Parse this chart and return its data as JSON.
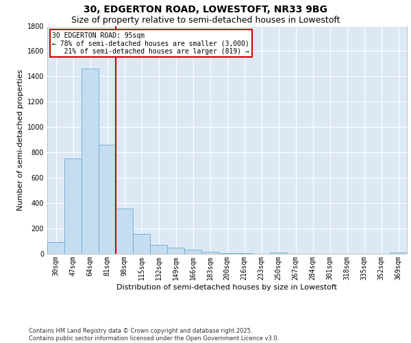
{
  "title_line1": "30, EDGERTON ROAD, LOWESTOFT, NR33 9BG",
  "title_line2": "Size of property relative to semi-detached houses in Lowestoft",
  "xlabel": "Distribution of semi-detached houses by size in Lowestoft",
  "ylabel": "Number of semi-detached properties",
  "footer": "Contains HM Land Registry data © Crown copyright and database right 2025.\nContains public sector information licensed under the Open Government Licence v3.0.",
  "categories": [
    "30sqm",
    "47sqm",
    "64sqm",
    "81sqm",
    "98sqm",
    "115sqm",
    "132sqm",
    "149sqm",
    "166sqm",
    "183sqm",
    "200sqm",
    "216sqm",
    "233sqm",
    "250sqm",
    "267sqm",
    "284sqm",
    "301sqm",
    "318sqm",
    "335sqm",
    "352sqm",
    "369sqm"
  ],
  "values": [
    90,
    755,
    1460,
    860,
    355,
    155,
    70,
    50,
    35,
    18,
    8,
    5,
    0,
    12,
    0,
    0,
    0,
    0,
    0,
    0,
    10
  ],
  "bar_color": "#c5ddf0",
  "bar_edge_color": "#6aaad4",
  "property_line_x": 4.0,
  "property_size": "95sqm",
  "pct_smaller": 78,
  "n_smaller": 3000,
  "pct_larger": 21,
  "n_larger": 819,
  "annotation_box_color": "#cc0000",
  "ylim": [
    0,
    1800
  ],
  "yticks": [
    0,
    200,
    400,
    600,
    800,
    1000,
    1200,
    1400,
    1600,
    1800
  ],
  "background_color": "#dce9f5",
  "grid_color": "#ffffff",
  "fig_background": "#ffffff",
  "title_fontsize": 10,
  "subtitle_fontsize": 9,
  "axis_label_fontsize": 8,
  "tick_fontsize": 7,
  "footer_fontsize": 6,
  "annot_fontsize": 7
}
